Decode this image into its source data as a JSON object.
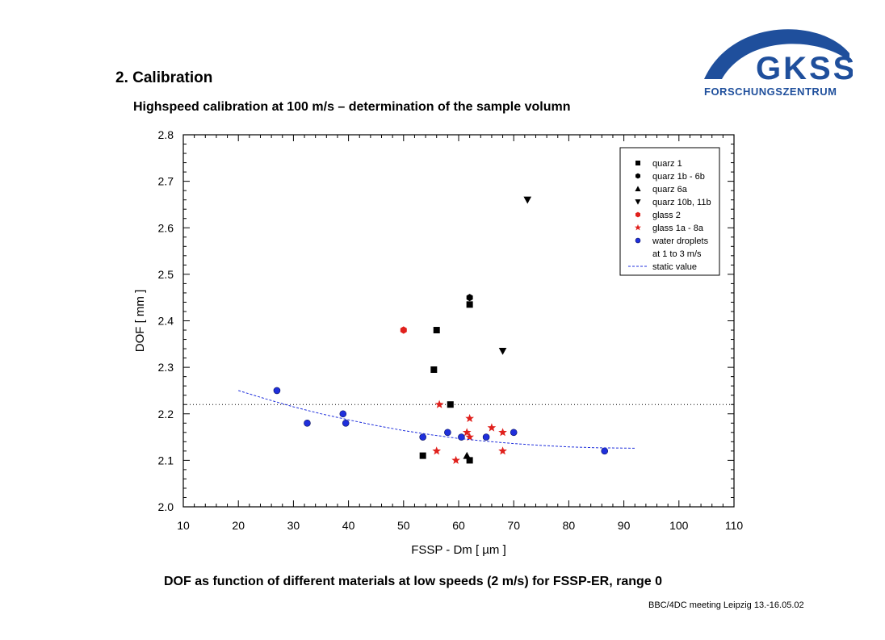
{
  "header": {
    "section_title": "2. Calibration",
    "subtitle": "Highspeed calibration at 100 m/s – determination of the sample volumn"
  },
  "logo": {
    "text_main": "GKSS",
    "text_sub": "FORSCHUNGSZENTRUM",
    "color": "#1f4f9c"
  },
  "caption": "DOF as function of different materials at low speeds (2 m/s) for FSSP-ER, range 0",
  "footer": "BBC/4DC meeting Leipzig 13.-16.05.02",
  "chart_data": {
    "type": "scatter",
    "xlabel": "FSSP - Dm [ µm ]",
    "ylabel": "DOF [ mm ]",
    "xlim": [
      10,
      110
    ],
    "ylim": [
      2.0,
      2.8
    ],
    "x_ticks": [
      "10",
      "20",
      "30",
      "40",
      "50",
      "60",
      "70",
      "80",
      "90",
      "100",
      "110"
    ],
    "y_ticks": [
      "2.0",
      "2.1",
      "2.2",
      "2.3",
      "2.4",
      "2.5",
      "2.6",
      "2.7",
      "2.8"
    ],
    "grid": false,
    "legend_position": "top-right",
    "reference_line": {
      "y": 2.22,
      "style": "dotted"
    },
    "series": [
      {
        "name": "quarz 1",
        "marker": "square",
        "color": "#000000",
        "points": [
          [
            62,
            2.435
          ],
          [
            56,
            2.38
          ],
          [
            55.5,
            2.295
          ],
          [
            58.5,
            2.22
          ],
          [
            53.5,
            2.11
          ],
          [
            62,
            2.1
          ]
        ]
      },
      {
        "name": "quarz 1b - 6b",
        "marker": "hexagon",
        "color": "#000000",
        "points": [
          [
            62,
            2.45
          ]
        ]
      },
      {
        "name": "quarz 6a",
        "marker": "triangle-up",
        "color": "#000000",
        "points": [
          [
            61.5,
            2.11
          ]
        ]
      },
      {
        "name": "quarz 10b, 11b",
        "marker": "triangle-down",
        "color": "#000000",
        "points": [
          [
            72.5,
            2.66
          ],
          [
            68,
            2.335
          ]
        ]
      },
      {
        "name": "glass 2",
        "marker": "hexagon",
        "color": "#e0201c",
        "points": [
          [
            50,
            2.38
          ]
        ]
      },
      {
        "name": "glass 1a - 8a",
        "marker": "star",
        "color": "#e0201c",
        "points": [
          [
            56.5,
            2.22
          ],
          [
            62,
            2.19
          ],
          [
            66,
            2.17
          ],
          [
            61.5,
            2.16
          ],
          [
            68,
            2.16
          ],
          [
            62,
            2.15
          ],
          [
            56,
            2.12
          ],
          [
            68,
            2.12
          ],
          [
            59.5,
            2.1
          ]
        ]
      },
      {
        "name": "water droplets\nat 1 to 3 m/s",
        "marker": "circle",
        "color": "#1f2fdc",
        "points": [
          [
            27,
            2.25
          ],
          [
            39,
            2.2
          ],
          [
            32.5,
            2.18
          ],
          [
            39.5,
            2.18
          ],
          [
            58,
            2.16
          ],
          [
            70,
            2.16
          ],
          [
            53.5,
            2.15
          ],
          [
            60.5,
            2.15
          ],
          [
            65,
            2.15
          ],
          [
            86.5,
            2.12
          ]
        ]
      },
      {
        "name": "static value",
        "marker": "dashed-line",
        "color": "#1f2fdc",
        "points": [
          [
            20,
            2.25
          ],
          [
            25,
            2.232
          ],
          [
            30,
            2.215
          ],
          [
            35,
            2.2
          ],
          [
            40,
            2.187
          ],
          [
            45,
            2.175
          ],
          [
            50,
            2.164
          ],
          [
            55,
            2.155
          ],
          [
            60,
            2.147
          ],
          [
            65,
            2.141
          ],
          [
            70,
            2.136
          ],
          [
            75,
            2.132
          ],
          [
            80,
            2.129
          ],
          [
            85,
            2.127
          ],
          [
            92,
            2.126
          ]
        ]
      }
    ],
    "legend_entries": [
      "quarz 1",
      "quarz 1b - 6b",
      "quarz 6a",
      "quarz 10b, 11b",
      "glass 2",
      "glass 1a - 8a",
      "water droplets",
      "at 1 to 3 m/s",
      "static value"
    ]
  }
}
